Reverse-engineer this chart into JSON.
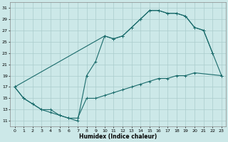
{
  "xlabel": "Humidex (Indice chaleur)",
  "bg_color": "#cce8e8",
  "grid_color": "#aacccc",
  "line_color": "#1a6b6b",
  "xlim": [
    -0.5,
    23.5
  ],
  "ylim": [
    10,
    32
  ],
  "xticks": [
    0,
    1,
    2,
    3,
    4,
    5,
    6,
    7,
    8,
    9,
    10,
    11,
    12,
    13,
    14,
    15,
    16,
    17,
    18,
    19,
    20,
    21,
    22,
    23
  ],
  "yticks": [
    11,
    13,
    15,
    17,
    19,
    21,
    23,
    25,
    27,
    29,
    31
  ],
  "line1_x": [
    0,
    1,
    2,
    3,
    4,
    5,
    6,
    7,
    8,
    9,
    10,
    11,
    12,
    13,
    14,
    15,
    16,
    17,
    18,
    19,
    20,
    21,
    22
  ],
  "line1_y": [
    17,
    15,
    14,
    13,
    12.5,
    12,
    11.5,
    11,
    19,
    21.5,
    26,
    25.5,
    26,
    27.5,
    29,
    30.5,
    30.5,
    30,
    30,
    29.5,
    27.5,
    27.0,
    23
  ],
  "line2_x": [
    0,
    1,
    2,
    3,
    4,
    5,
    6,
    7,
    8,
    9,
    10,
    11,
    12,
    13,
    14,
    15,
    16,
    17,
    18,
    19,
    20,
    23
  ],
  "line2_y": [
    17,
    15,
    14,
    13,
    13,
    12,
    11.5,
    11.5,
    15,
    15,
    15.5,
    16,
    16.5,
    17,
    17.5,
    18,
    18.5,
    18.5,
    19,
    19,
    19.5,
    19
  ],
  "line3_x": [
    0,
    10,
    11,
    12,
    13,
    14,
    15,
    16,
    17,
    18,
    19,
    20,
    21,
    22,
    23
  ],
  "line3_y": [
    17,
    26,
    25.5,
    26,
    27.5,
    29,
    30.5,
    30.5,
    30,
    30,
    29.5,
    27.5,
    27.0,
    23,
    19
  ]
}
